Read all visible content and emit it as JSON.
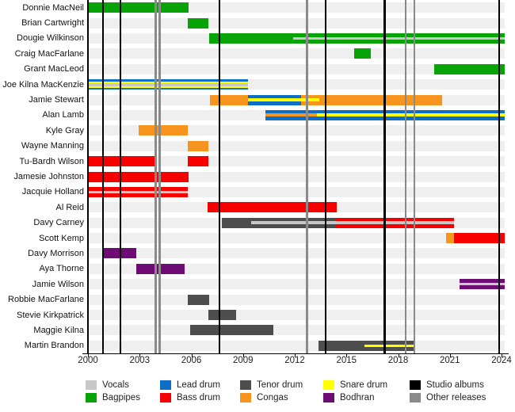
{
  "chart_data": {
    "type": "gantt-timeline",
    "description": "Band member timeline, roles by colored bars, releases as vertical lines",
    "x_axis": {
      "min": 2000,
      "max": 2024.18,
      "tick_years": [
        2000,
        2003,
        2006,
        2009,
        2012,
        2015,
        2018,
        2021,
        2024
      ]
    },
    "roles_colors": {
      "vocals": "#c8c8c8",
      "bagpipes": "#07a307",
      "lead_drum": "#0d6ec7",
      "bass_drum": "#f80000",
      "tenor_drum": "#4d4d4d",
      "congas": "#f7941e",
      "snare_drum": "#ffff00",
      "bodhran": "#6e0b75",
      "studio_albums": "#000000",
      "other_releases": "#8a8a8a"
    },
    "members": [
      "Donnie MacNeil",
      "Brian Cartwright",
      "Dougie Wilkinson",
      "Craig MacFarlane",
      "Grant MacLeod",
      "Joe Kilna MacKenzie",
      "Jamie Stewart",
      "Alan Lamb",
      "Kyle Gray",
      "Wayne Manning",
      "Tu-Bardh Wilson",
      "Jamesie Johnston",
      "Jacquie Holland",
      "Al Reid",
      "Davy Carney",
      "Scott Kemp",
      "Davy Morrison",
      "Aya Thorne",
      "Jamie Wilson",
      "Robbie MacFarlane",
      "Stevie Kirkpatrick",
      "Maggie Kilna",
      "Martin Brandon"
    ],
    "bars": [
      {
        "member": "Donnie MacNeil",
        "row": 0,
        "start": 2000.0,
        "end": 2005.85,
        "layers": [
          [
            "bagpipes",
            13
          ]
        ]
      },
      {
        "member": "Brian Cartwright",
        "row": 1,
        "start": 2005.78,
        "end": 2007.0,
        "layers": [
          [
            "bagpipes",
            13
          ]
        ]
      },
      {
        "member": "Dougie Wilkinson",
        "row": 2,
        "start": 2007.03,
        "end": 2024.18,
        "layers": [
          [
            "bagpipes",
            13
          ]
        ]
      },
      {
        "member": "Craig MacFarlane",
        "row": 3,
        "start": 2015.43,
        "end": 2016.43,
        "layers": [
          [
            "bagpipes",
            13
          ]
        ]
      },
      {
        "member": "Grant MacLeod",
        "row": 4,
        "start": 2020.1,
        "end": 2024.18,
        "layers": [
          [
            "bagpipes",
            13
          ]
        ]
      },
      {
        "member": "Joe Kilna MacKenzie",
        "row": 5,
        "start": 2000.0,
        "end": 2009.3,
        "layers": [
          [
            "lead_drum",
            2.5
          ],
          [
            "snare_drum",
            2
          ],
          [
            "vocals",
            4
          ],
          [
            "snare_drum",
            2
          ],
          [
            "lead_drum",
            2.5
          ]
        ]
      },
      {
        "member": "Jamie Stewart",
        "row": 6,
        "start": 2007.08,
        "end": 2009.3,
        "layers": [
          [
            "congas",
            13
          ]
        ]
      },
      {
        "member": "Jamie Stewart",
        "row": 6,
        "start": 2009.3,
        "end": 2012.37,
        "layers": [
          [
            "lead_drum",
            4.5
          ],
          [
            "snare_drum",
            4
          ],
          [
            "lead_drum",
            4.5
          ]
        ]
      },
      {
        "member": "Jamie Stewart",
        "row": 6,
        "start": 2012.37,
        "end": 2013.43,
        "layers": [
          [
            "congas",
            4.5
          ],
          [
            "snare_drum",
            4
          ],
          [
            "congas",
            4.5
          ]
        ]
      },
      {
        "member": "Jamie Stewart",
        "row": 6,
        "start": 2013.43,
        "end": 2020.57,
        "layers": [
          [
            "congas",
            13
          ]
        ]
      },
      {
        "member": "Alan Lamb",
        "row": 7,
        "start": 2010.3,
        "end": 2013.3,
        "layers": [
          [
            "lead_drum",
            4.5
          ],
          [
            "congas",
            4
          ],
          [
            "lead_drum",
            4.5
          ]
        ]
      },
      {
        "member": "Alan Lamb",
        "row": 7,
        "start": 2013.3,
        "end": 2024.18,
        "layers": [
          [
            "lead_drum",
            4.5
          ],
          [
            "snare_drum",
            4
          ],
          [
            "lead_drum",
            4.5
          ]
        ]
      },
      {
        "member": "Kyle Gray",
        "row": 8,
        "start": 2002.94,
        "end": 2005.78,
        "layers": [
          [
            "congas",
            13
          ]
        ]
      },
      {
        "member": "Wayne Manning",
        "row": 9,
        "start": 2005.78,
        "end": 2007.0,
        "layers": [
          [
            "congas",
            13
          ]
        ]
      },
      {
        "member": "Tu-Bardh Wilson",
        "row": 10,
        "start": 2000.0,
        "end": 2004.01,
        "layers": [
          [
            "bass_drum",
            13
          ]
        ]
      },
      {
        "member": "Tu-Bardh Wilson",
        "row": 10,
        "start": 2005.78,
        "end": 2007.0,
        "layers": [
          [
            "bass_drum",
            13
          ]
        ]
      },
      {
        "member": "Jamesie Johnston",
        "row": 11,
        "start": 2000.0,
        "end": 2005.85,
        "layers": [
          [
            "bass_drum",
            13
          ]
        ]
      },
      {
        "member": "Jacquie Holland",
        "row": 12,
        "start": 2000.0,
        "end": 2005.78,
        "layers": [
          [
            "bass_drum",
            13
          ]
        ]
      },
      {
        "member": "Al Reid",
        "row": 13,
        "start": 2006.93,
        "end": 2014.44,
        "layers": [
          [
            "bass_drum",
            13
          ]
        ]
      },
      {
        "member": "Davy Carney",
        "row": 14,
        "start": 2007.77,
        "end": 2014.36,
        "layers": [
          [
            "tenor_drum",
            13
          ]
        ]
      },
      {
        "member": "Davy Carney",
        "row": 14,
        "start": 2014.36,
        "end": 2021.26,
        "layers": [
          [
            "bass_drum",
            13
          ]
        ]
      },
      {
        "member": "Scott Kemp",
        "row": 15,
        "start": 2020.8,
        "end": 2021.26,
        "layers": [
          [
            "congas",
            13
          ]
        ]
      },
      {
        "member": "Scott Kemp",
        "row": 15,
        "start": 2021.26,
        "end": 2024.18,
        "layers": [
          [
            "bass_drum",
            13
          ]
        ]
      },
      {
        "member": "Davy Morrison",
        "row": 16,
        "start": 2000.87,
        "end": 2002.79,
        "layers": [
          [
            "bodhran",
            13
          ]
        ]
      },
      {
        "member": "Aya Thorne",
        "row": 17,
        "start": 2002.79,
        "end": 2005.6,
        "layers": [
          [
            "bodhran",
            13
          ]
        ]
      },
      {
        "member": "Jamie Wilson",
        "row": 18,
        "start": 2021.56,
        "end": 2024.18,
        "layers": [
          [
            "bodhran",
            13
          ]
        ]
      },
      {
        "member": "Robbie MacFarlane",
        "row": 19,
        "start": 2005.78,
        "end": 2007.05,
        "layers": [
          [
            "tenor_drum",
            13
          ]
        ]
      },
      {
        "member": "Stevie Kirkpatrick",
        "row": 20,
        "start": 2006.97,
        "end": 2008.61,
        "layers": [
          [
            "tenor_drum",
            13
          ]
        ]
      },
      {
        "member": "Maggie Kilna",
        "row": 21,
        "start": 2005.93,
        "end": 2010.76,
        "layers": [
          [
            "tenor_drum",
            13
          ]
        ]
      },
      {
        "member": "Martin Brandon",
        "row": 22,
        "start": 2013.37,
        "end": 2018.95,
        "layers": [
          [
            "tenor_drum",
            13
          ]
        ]
      }
    ],
    "stripe_overlays": [
      {
        "member": "Dougie Wilkinson",
        "row": 2,
        "start": 2011.9,
        "end": 2024.18,
        "role": "vocals"
      },
      {
        "member": "Jacquie Holland",
        "row": 12,
        "start": 2000.0,
        "end": 2005.78,
        "role": "vocals"
      },
      {
        "member": "Davy Carney",
        "row": 14,
        "start": 2009.46,
        "end": 2021.26,
        "role": "vocals"
      },
      {
        "member": "Jamie Wilson",
        "row": 18,
        "start": 2021.56,
        "end": 2024.18,
        "role": "vocals"
      },
      {
        "member": "Martin Brandon",
        "row": 22,
        "start": 2016.05,
        "end": 2018.95,
        "role": "snare_drum"
      }
    ],
    "releases": {
      "studio_albums": [
        2000.87,
        2001.89,
        2007.63,
        2013.79,
        2017.22,
        2023.86
      ],
      "other_releases": [
        2003.93,
        2004.16,
        2012.71,
        2018.42,
        2018.94
      ]
    },
    "legend": [
      {
        "label": "Vocals",
        "role": "vocals"
      },
      {
        "label": "Bagpipes",
        "role": "bagpipes"
      },
      {
        "label": "Lead drum",
        "role": "lead_drum"
      },
      {
        "label": "Bass drum",
        "role": "bass_drum"
      },
      {
        "label": "Tenor drum",
        "role": "tenor_drum"
      },
      {
        "label": "Congas",
        "role": "congas"
      },
      {
        "label": "Snare drum",
        "role": "snare_drum"
      },
      {
        "label": "Bodhran",
        "role": "bodhran"
      },
      {
        "label": "Studio albums",
        "role": "studio_albums"
      },
      {
        "label": "Other releases",
        "role": "other_releases"
      }
    ]
  }
}
